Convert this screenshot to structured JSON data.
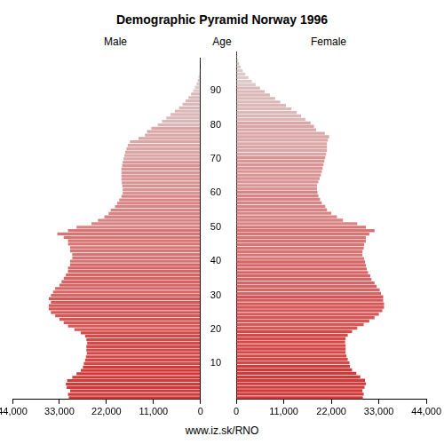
{
  "title": "Demographic Pyramid Norway 1996",
  "y_label": "Age",
  "source": "www.iz.sk/RNO",
  "chart_data": [
    {
      "type": "bar",
      "orientation": "horizontal",
      "title": "Male",
      "grid": false,
      "categories": [
        null,
        null,
        null,
        null,
        null,
        null,
        null,
        null,
        null,
        null,
        10,
        null,
        null,
        null,
        null,
        null,
        null,
        null,
        null,
        null,
        20,
        null,
        null,
        null,
        null,
        null,
        null,
        null,
        null,
        null,
        30,
        null,
        null,
        null,
        null,
        null,
        null,
        null,
        null,
        null,
        40,
        null,
        null,
        null,
        null,
        null,
        null,
        null,
        null,
        null,
        50,
        null,
        null,
        null,
        null,
        null,
        null,
        null,
        null,
        null,
        60,
        null,
        null,
        null,
        null,
        null,
        null,
        null,
        null,
        null,
        70,
        null,
        null,
        null,
        null,
        null,
        null,
        null,
        null,
        null,
        80,
        null,
        null,
        null,
        null,
        null,
        null,
        null,
        null,
        null,
        90,
        null,
        null,
        null,
        null,
        null,
        null,
        null,
        null,
        null
      ],
      "values": [
        30800,
        31000,
        30500,
        31300,
        31500,
        31200,
        30000,
        29000,
        28000,
        27500,
        27300,
        27000,
        26800,
        26600,
        26700,
        26700,
        26500,
        26700,
        27000,
        28000,
        29500,
        31000,
        32000,
        33000,
        34000,
        35000,
        35500,
        35500,
        35000,
        35500,
        35000,
        34500,
        34000,
        33000,
        32500,
        32000,
        31500,
        31000,
        31000,
        30500,
        30500,
        30000,
        30000,
        30500,
        30500,
        31000,
        31000,
        32000,
        33500,
        31000,
        29000,
        25500,
        24000,
        22500,
        21500,
        21000,
        20000,
        19500,
        19000,
        18500,
        18200,
        18200,
        18300,
        18400,
        18500,
        18500,
        18500,
        18500,
        18300,
        18200,
        18000,
        17800,
        17600,
        17300,
        17000,
        16500,
        14500,
        13000,
        12500,
        11500,
        10000,
        9000,
        8000,
        7000,
        6000,
        5000,
        4200,
        3500,
        2800,
        2200,
        1700,
        1300,
        900,
        650,
        450,
        300,
        200,
        120,
        80,
        50
      ],
      "colors": [
        "#d23a3a",
        "#d23a3a",
        "#d23a3a",
        "#d23a3a",
        "#d23a3a",
        "#d23a3a",
        "#d23a3a",
        "#d23a3a",
        "#d23a3a",
        "#d23a3a",
        "#d44848",
        "#d44848",
        "#d44848",
        "#d44848",
        "#d44848",
        "#d44848",
        "#d44848",
        "#d44848",
        "#d44848",
        "#d44848",
        "#d55757",
        "#d55757",
        "#d55757",
        "#d55757",
        "#d55757",
        "#d55757",
        "#d55757",
        "#d55757",
        "#d55757",
        "#d55757",
        "#d66666",
        "#d66666",
        "#d66666",
        "#d66666",
        "#d66666",
        "#d66666",
        "#d66666",
        "#d66666",
        "#d66666",
        "#d66666",
        "#d77474",
        "#d77474",
        "#d77474",
        "#d77474",
        "#d77474",
        "#d77474",
        "#d77474",
        "#d77474",
        "#d77474",
        "#d77474",
        "#d88484",
        "#d88484",
        "#d88484",
        "#d88484",
        "#d88484",
        "#d88484",
        "#d88484",
        "#d88484",
        "#d88484",
        "#d88484",
        "#d99595",
        "#d99595",
        "#d99595",
        "#d99595",
        "#d99595",
        "#d99595",
        "#d99595",
        "#d99595",
        "#d99595",
        "#d99595",
        "#daa6a6",
        "#daa6a6",
        "#daa6a6",
        "#daa6a6",
        "#daa6a6",
        "#daa6a6",
        "#daa6a6",
        "#daa6a6",
        "#daa6a6",
        "#daa6a6",
        "#dbb8b8",
        "#dbb8b8",
        "#dbb8b8",
        "#dbb8b8",
        "#dbb8b8",
        "#dbb8b8",
        "#dbb8b8",
        "#dbb8b8",
        "#dbb8b8",
        "#dbb8b8",
        "#dccaca",
        "#dccaca",
        "#dccaca",
        "#dccaca",
        "#dccaca",
        "#dccaca",
        "#dccaca",
        "#dccaca",
        "#dccaca",
        "#dccaca"
      ],
      "xlim": [
        0,
        44000
      ],
      "xticks": [
        0,
        11000,
        22000,
        33000,
        44000
      ]
    },
    {
      "type": "bar",
      "orientation": "horizontal",
      "title": "Female",
      "grid": false,
      "categories": [
        null,
        null,
        null,
        null,
        null,
        null,
        null,
        null,
        null,
        null,
        10,
        null,
        null,
        null,
        null,
        null,
        null,
        null,
        null,
        null,
        20,
        null,
        null,
        null,
        null,
        null,
        null,
        null,
        null,
        null,
        30,
        null,
        null,
        null,
        null,
        null,
        null,
        null,
        null,
        null,
        40,
        null,
        null,
        null,
        null,
        null,
        null,
        null,
        null,
        null,
        50,
        null,
        null,
        null,
        null,
        null,
        null,
        null,
        null,
        null,
        60,
        null,
        null,
        null,
        null,
        null,
        null,
        null,
        null,
        null,
        70,
        null,
        null,
        null,
        null,
        null,
        null,
        null,
        null,
        null,
        80,
        null,
        null,
        null,
        null,
        null,
        null,
        null,
        null,
        null,
        90,
        null,
        null,
        null,
        null,
        null,
        null,
        null,
        null,
        null
      ],
      "values": [
        29300,
        29500,
        29200,
        29700,
        30000,
        29800,
        28700,
        27800,
        26800,
        26300,
        26200,
        25800,
        25500,
        25300,
        25300,
        25300,
        25200,
        25300,
        25800,
        26800,
        28000,
        29500,
        30800,
        32000,
        33000,
        33800,
        34200,
        34200,
        34000,
        34000,
        33500,
        33200,
        32500,
        32000,
        31300,
        31000,
        30500,
        30200,
        30000,
        29800,
        29600,
        29200,
        29200,
        29500,
        29600,
        30000,
        30000,
        30800,
        32000,
        30000,
        28000,
        24700,
        23300,
        22000,
        21000,
        20600,
        19800,
        19400,
        19000,
        18800,
        18700,
        18700,
        19000,
        19300,
        19600,
        19800,
        20000,
        20200,
        20400,
        20600,
        20800,
        21000,
        21000,
        21000,
        21200,
        21500,
        20500,
        18500,
        18000,
        17200,
        16000,
        15000,
        14000,
        12800,
        11500,
        10200,
        9000,
        7800,
        6600,
        5500,
        4500,
        3600,
        2800,
        2100,
        1500,
        1050,
        700,
        450,
        280,
        170
      ],
      "colors": [
        "#d23a3a",
        "#d23a3a",
        "#d23a3a",
        "#d23a3a",
        "#d23a3a",
        "#d23a3a",
        "#d23a3a",
        "#d23a3a",
        "#d23a3a",
        "#d23a3a",
        "#d44848",
        "#d44848",
        "#d44848",
        "#d44848",
        "#d44848",
        "#d44848",
        "#d44848",
        "#d44848",
        "#d44848",
        "#d44848",
        "#d55757",
        "#d55757",
        "#d55757",
        "#d55757",
        "#d55757",
        "#d55757",
        "#d55757",
        "#d55757",
        "#d55757",
        "#d55757",
        "#d66666",
        "#d66666",
        "#d66666",
        "#d66666",
        "#d66666",
        "#d66666",
        "#d66666",
        "#d66666",
        "#d66666",
        "#d66666",
        "#d77474",
        "#d77474",
        "#d77474",
        "#d77474",
        "#d77474",
        "#d77474",
        "#d77474",
        "#d77474",
        "#d77474",
        "#d77474",
        "#d88484",
        "#d88484",
        "#d88484",
        "#d88484",
        "#d88484",
        "#d88484",
        "#d88484",
        "#d88484",
        "#d88484",
        "#d88484",
        "#d99595",
        "#d99595",
        "#d99595",
        "#d99595",
        "#d99595",
        "#d99595",
        "#d99595",
        "#d99595",
        "#d99595",
        "#d99595",
        "#daa6a6",
        "#daa6a6",
        "#daa6a6",
        "#daa6a6",
        "#daa6a6",
        "#daa6a6",
        "#daa6a6",
        "#daa6a6",
        "#daa6a6",
        "#daa6a6",
        "#dbb8b8",
        "#dbb8b8",
        "#dbb8b8",
        "#dbb8b8",
        "#dbb8b8",
        "#dbb8b8",
        "#dbb8b8",
        "#dbb8b8",
        "#dbb8b8",
        "#dbb8b8",
        "#dccaca",
        "#dccaca",
        "#dccaca",
        "#dccaca",
        "#dccaca",
        "#dccaca",
        "#dccaca",
        "#dccaca",
        "#dccaca",
        "#dccaca"
      ],
      "xlim": [
        0,
        44000
      ],
      "xticks": [
        0,
        11000,
        22000,
        33000,
        44000
      ]
    }
  ]
}
